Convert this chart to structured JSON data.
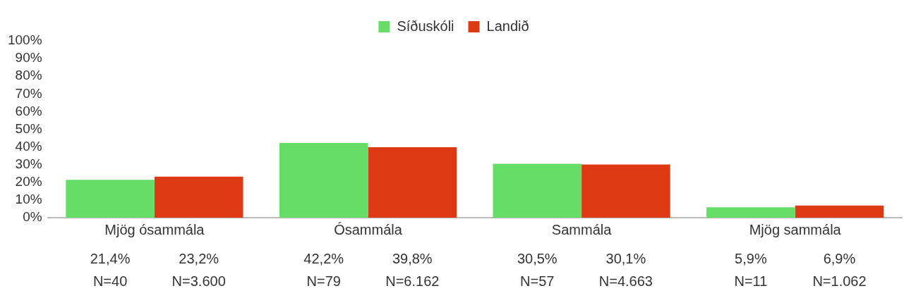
{
  "chart_data": {
    "type": "bar",
    "categories": [
      "Mjög ósammála",
      "Ósammála",
      "Sammála",
      "Mjög sammála"
    ],
    "series": [
      {
        "name": "Síðuskóli",
        "color": "#66dd66",
        "values": [
          21.4,
          42.2,
          30.5,
          5.9
        ],
        "value_labels": [
          "21,4%",
          "42,2%",
          "30,5%",
          "5,9%"
        ]
      },
      {
        "name": "Landið",
        "color": "#dd3a14",
        "values": [
          23.2,
          39.8,
          30.1,
          6.9
        ],
        "value_labels": [
          "23,2%",
          "39,8%",
          "30,1%",
          "6,9%"
        ]
      }
    ],
    "ylim": [
      0,
      100
    ],
    "yticks": [
      {
        "value": 0,
        "label": "0%"
      },
      {
        "value": 10,
        "label": "10%"
      },
      {
        "value": 20,
        "label": "20%"
      },
      {
        "value": 30,
        "label": "30%"
      },
      {
        "value": 40,
        "label": "40%"
      },
      {
        "value": 50,
        "label": "50%"
      },
      {
        "value": 60,
        "label": "60%"
      },
      {
        "value": 70,
        "label": "70%"
      },
      {
        "value": 80,
        "label": "80%"
      },
      {
        "value": 90,
        "label": "90%"
      },
      {
        "value": 100,
        "label": "100%"
      }
    ],
    "annotations": [
      "N=40",
      "N=3.600",
      "N=79",
      "N=6.162",
      "N=57",
      "N=4.663",
      "N=11",
      "N=1.062"
    ],
    "grid": false,
    "legend": "top"
  }
}
